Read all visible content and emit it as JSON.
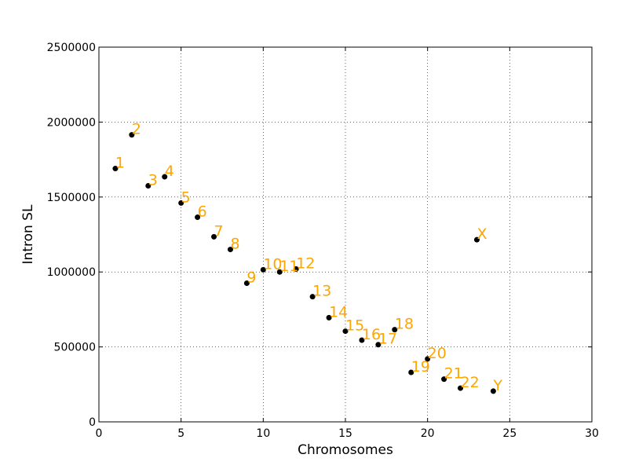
{
  "chart_data": {
    "type": "scatter",
    "title": "",
    "xlabel": "Chromosomes",
    "ylabel": "Intron SL",
    "xlim": [
      0,
      30
    ],
    "ylim": [
      0,
      2500000
    ],
    "xticks": [
      0,
      5,
      10,
      15,
      20,
      25,
      30
    ],
    "yticks": [
      0,
      500000,
      1000000,
      1500000,
      2000000,
      2500000
    ],
    "xtick_labels": [
      "0",
      "5",
      "10",
      "15",
      "20",
      "25",
      "30"
    ],
    "ytick_labels": [
      "0",
      "500000",
      "1000000",
      "1500000",
      "2000000",
      "2500000"
    ],
    "grid": true,
    "marker_color": "#000000",
    "label_color": "#FFA500",
    "points": [
      {
        "label": "1",
        "x": 1,
        "y": 1690000
      },
      {
        "label": "2",
        "x": 2,
        "y": 1915000
      },
      {
        "label": "3",
        "x": 3,
        "y": 1575000
      },
      {
        "label": "4",
        "x": 4,
        "y": 1635000
      },
      {
        "label": "5",
        "x": 5,
        "y": 1460000
      },
      {
        "label": "6",
        "x": 6,
        "y": 1365000
      },
      {
        "label": "7",
        "x": 7,
        "y": 1235000
      },
      {
        "label": "8",
        "x": 8,
        "y": 1150000
      },
      {
        "label": "9",
        "x": 9,
        "y": 925000
      },
      {
        "label": "10",
        "x": 10,
        "y": 1015000
      },
      {
        "label": "11",
        "x": 11,
        "y": 1000000
      },
      {
        "label": "12",
        "x": 12,
        "y": 1020000
      },
      {
        "label": "13",
        "x": 13,
        "y": 835000
      },
      {
        "label": "14",
        "x": 14,
        "y": 695000
      },
      {
        "label": "15",
        "x": 15,
        "y": 605000
      },
      {
        "label": "16",
        "x": 16,
        "y": 545000
      },
      {
        "label": "17",
        "x": 17,
        "y": 515000
      },
      {
        "label": "18",
        "x": 18,
        "y": 615000
      },
      {
        "label": "19",
        "x": 19,
        "y": 330000
      },
      {
        "label": "20",
        "x": 20,
        "y": 420000
      },
      {
        "label": "21",
        "x": 21,
        "y": 285000
      },
      {
        "label": "22",
        "x": 22,
        "y": 225000
      },
      {
        "label": "X",
        "x": 23,
        "y": 1215000
      },
      {
        "label": "Y",
        "x": 24,
        "y": 205000
      }
    ]
  }
}
